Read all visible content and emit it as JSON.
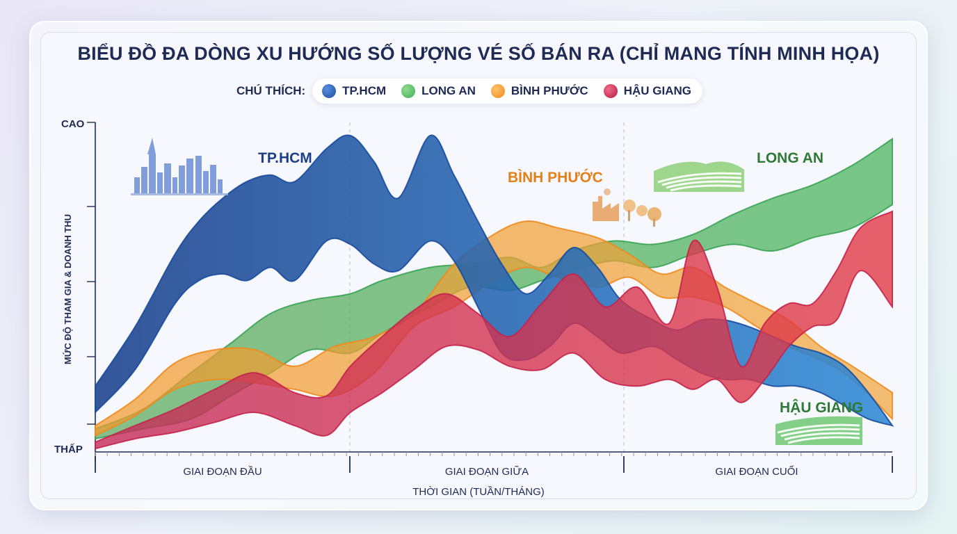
{
  "title": "BIỂU ĐỒ ĐA DÒNG XU HƯỚNG SỐ LƯỢNG VÉ SỐ BÁN RA (CHỈ MANG TÍNH MINH HỌA)",
  "legend_label": "CHÚ THÍCH:",
  "colors": {
    "tphcm": "#1d4ea0",
    "longan": "#3fae5a",
    "binhphuoc": "#f59a2c",
    "haugiang": "#c7284f",
    "text": "#1f2a55"
  },
  "chart_data": {
    "type": "area",
    "title": "BIỂU ĐỒ ĐA DÒNG XU HƯỚNG SỐ LƯỢNG VÉ SỐ BÁN RA (CHỈ MANG TÍNH MINH HỌA)",
    "xlabel": "THỜI GIAN (TUẦN/THÁNG)",
    "ylabel": "MỨC ĐỘ THAM GIA & DOANH THU",
    "y_tick_labels": {
      "top": "CAO",
      "bottom": "THẤP"
    },
    "x_stage_labels": [
      "GIAI ĐOẠN ĐẦU",
      "GIAI ĐOẠN GIỮA",
      "GIAI ĐOẠN CUỐI"
    ],
    "ylim": [
      0,
      100
    ],
    "xlim": [
      0,
      100
    ],
    "grid": false,
    "legend_position": "top",
    "series": [
      {
        "name": "TP.HCM",
        "label": "TP.HCM",
        "color": "#1d4ea0",
        "icon": "city-skyline-icon",
        "x": [
          0,
          5,
          10,
          13,
          16,
          19,
          22,
          25,
          29,
          32,
          35,
          38,
          42,
          45,
          48,
          51,
          54,
          57,
          60,
          63,
          66,
          70,
          73,
          76,
          79,
          82,
          85,
          88,
          91,
          94,
          97,
          100
        ],
        "upper": [
          20,
          38,
          60,
          70,
          77,
          82,
          84,
          82,
          92,
          96,
          88,
          77,
          96,
          84,
          70,
          57,
          48,
          54,
          62,
          56,
          46,
          40,
          37,
          40,
          40,
          38,
          35,
          32,
          30,
          26,
          18,
          8
        ],
        "lower": [
          12,
          25,
          45,
          52,
          54,
          52,
          56,
          52,
          64,
          63,
          57,
          55,
          64,
          58,
          44,
          30,
          28,
          32,
          39,
          35,
          30,
          32,
          28,
          24,
          22,
          22,
          20,
          20,
          18,
          14,
          10,
          8
        ]
      },
      {
        "name": "LONG AN",
        "label": "LONG AN",
        "color": "#3fae5a",
        "icon": "rice-field-icon",
        "x": [
          0,
          6,
          12,
          17,
          22,
          27,
          32,
          36,
          42,
          47,
          52,
          56,
          60,
          65,
          70,
          75,
          80,
          85,
          90,
          95,
          100
        ],
        "upper": [
          7,
          13,
          24,
          33,
          42,
          46,
          48,
          52,
          56,
          57,
          59,
          56,
          61,
          64,
          63,
          66,
          72,
          77,
          81,
          87,
          95
        ],
        "lower": [
          4,
          7,
          10,
          17,
          24,
          31,
          30,
          36,
          44,
          50,
          49,
          52,
          55,
          58,
          56,
          60,
          63,
          61,
          65,
          68,
          75
        ]
      },
      {
        "name": "BÌNH PHƯỚC",
        "label": "BÌNH PHƯỚC",
        "color": "#f59a2c",
        "icon": "factory-trees-icon",
        "x": [
          0,
          5,
          10,
          15,
          20,
          25,
          30,
          35,
          40,
          45,
          50,
          54,
          58,
          63,
          67,
          71,
          75,
          79,
          83,
          87,
          91,
          95,
          100
        ],
        "upper": [
          8,
          16,
          27,
          31,
          31,
          26,
          32,
          35,
          42,
          57,
          66,
          70,
          68,
          65,
          60,
          54,
          56,
          50,
          45,
          40,
          32,
          26,
          18
        ],
        "lower": [
          5,
          11,
          19,
          22,
          21,
          19,
          17,
          24,
          38,
          44,
          52,
          56,
          53,
          50,
          53,
          47,
          47,
          44,
          38,
          32,
          28,
          22,
          10
        ]
      },
      {
        "name": "HẬU GIANG",
        "label": "HẬU GIANG",
        "color": "#c7284f",
        "icon": "field-icon",
        "x": [
          0,
          5,
          10,
          15,
          20,
          25,
          29,
          32,
          36,
          40,
          44,
          48,
          52,
          56,
          60,
          64,
          68,
          72,
          75,
          78,
          81,
          84,
          87,
          90,
          93,
          96,
          100
        ],
        "upper": [
          3,
          8,
          13,
          19,
          24,
          18,
          17,
          26,
          35,
          43,
          48,
          42,
          35,
          45,
          54,
          44,
          50,
          39,
          64,
          50,
          26,
          39,
          45,
          45,
          55,
          68,
          73
        ],
        "lower": [
          1,
          4,
          6,
          9,
          12,
          8,
          5,
          12,
          18,
          25,
          32,
          31,
          26,
          25,
          30,
          22,
          20,
          22,
          19,
          22,
          15,
          22,
          32,
          38,
          40,
          55,
          44
        ]
      }
    ]
  }
}
